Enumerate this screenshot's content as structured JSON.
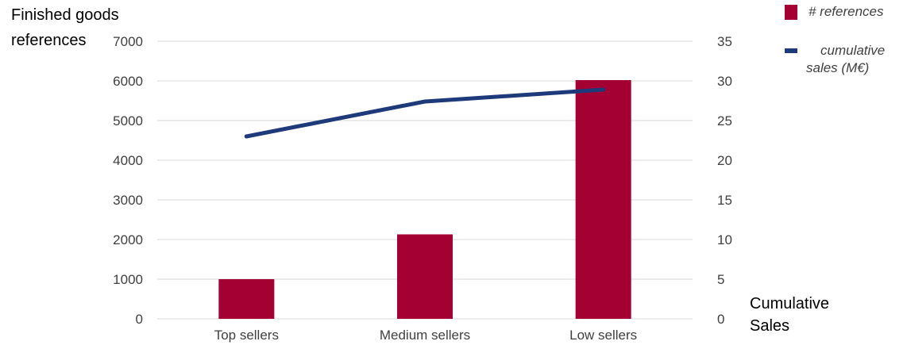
{
  "chart_data": {
    "type": "bar",
    "categories": [
      "Top sellers",
      "Medium sellers",
      "Low sellers"
    ],
    "series": [
      {
        "name": "# references",
        "type": "bar",
        "axis": "left",
        "color": "#A50034",
        "values": [
          1000,
          2130,
          6020
        ]
      },
      {
        "name": "cumulative sales (M€)",
        "type": "line",
        "axis": "right",
        "color": "#1F3A7A",
        "values": [
          23,
          27.4,
          28.9
        ]
      }
    ],
    "y_left": {
      "label_lines": [
        "Finished goods",
        "references"
      ],
      "range": [
        0,
        7000
      ],
      "ticks": [
        "0",
        "1000",
        "2000",
        "3000",
        "4000",
        "5000",
        "6000",
        "7000"
      ]
    },
    "y_right": {
      "label_lines": [
        "Cumulative",
        "Sales"
      ],
      "range": [
        0,
        35
      ],
      "ticks": [
        "0",
        "5",
        "10",
        "15",
        "20",
        "25",
        "30",
        "35"
      ]
    },
    "legend": {
      "placement": "top-right",
      "items": [
        {
          "label_lines": [
            "# references"
          ],
          "color": "#A50034",
          "shape": "square"
        },
        {
          "label_lines": [
            "cumulative",
            "sales (M€)"
          ],
          "color": "#1F3A7A",
          "shape": "line"
        }
      ]
    },
    "grid": true,
    "grid_color": "#D9D9D9"
  }
}
